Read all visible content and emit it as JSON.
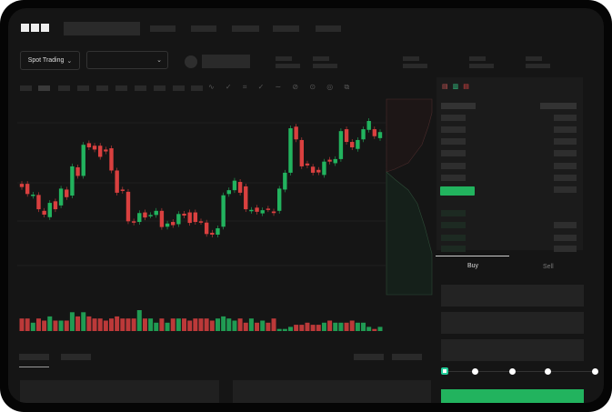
{
  "brand": {
    "logo": "OKX"
  },
  "market_selector": {
    "label": "Spot Trading",
    "icon": "chevron-down-icon"
  },
  "pair_selector": {
    "value": "",
    "icon": "chevron-down-icon"
  },
  "trade_form": {
    "tabs": [
      {
        "label": "Buy",
        "active": true
      },
      {
        "label": "Sell",
        "active": false
      }
    ],
    "slider_percent": 0
  },
  "colors": {
    "up": "#22b35e",
    "down": "#d9403f",
    "background": "#151515"
  },
  "chart_data": {
    "type": "candlestick",
    "candles": [
      {
        "o": 200,
        "c": 190
      },
      {
        "o": 200,
        "c": 168
      },
      {
        "o": 162,
        "c": 166
      },
      {
        "o": 165,
        "c": 120
      },
      {
        "o": 115,
        "c": 103
      },
      {
        "o": 95,
        "c": 140
      },
      {
        "o": 145,
        "c": 120
      },
      {
        "o": 132,
        "c": 185
      },
      {
        "o": 182,
        "c": 158
      },
      {
        "o": 163,
        "c": 255
      },
      {
        "o": 252,
        "c": 225
      },
      {
        "o": 225,
        "c": 323
      },
      {
        "o": 328,
        "c": 315
      },
      {
        "o": 320,
        "c": 308
      },
      {
        "o": 320,
        "c": 285
      },
      {
        "o": 308,
        "c": 302
      },
      {
        "o": 312,
        "c": 242
      },
      {
        "o": 242,
        "c": 172
      },
      {
        "o": 182,
        "c": 178
      },
      {
        "o": 175,
        "c": 82
      },
      {
        "o": 82,
        "c": 78
      },
      {
        "o": 80,
        "c": 108
      },
      {
        "o": 110,
        "c": 94
      },
      {
        "o": 100,
        "c": 102
      },
      {
        "o": 102,
        "c": 115
      },
      {
        "o": 115,
        "c": 64
      },
      {
        "o": 65,
        "c": 75
      },
      {
        "o": 80,
        "c": 70
      },
      {
        "o": 73,
        "c": 105
      },
      {
        "o": 106,
        "c": 100
      },
      {
        "o": 110,
        "c": 77
      },
      {
        "o": 110,
        "c": 80
      },
      {
        "o": 82,
        "c": 80
      },
      {
        "o": 78,
        "c": 42
      },
      {
        "o": 46,
        "c": 40
      },
      {
        "o": 40,
        "c": 60
      },
      {
        "o": 65,
        "c": 164
      },
      {
        "o": 168,
        "c": 180
      },
      {
        "o": 180,
        "c": 210
      },
      {
        "o": 206,
        "c": 172
      },
      {
        "o": 192,
        "c": 120
      },
      {
        "o": 115,
        "c": 118
      },
      {
        "o": 125,
        "c": 112
      },
      {
        "o": 107,
        "c": 117
      },
      {
        "o": 122,
        "c": 120
      },
      {
        "o": 113,
        "c": 108
      },
      {
        "o": 115,
        "c": 185
      },
      {
        "o": 182,
        "c": 235
      },
      {
        "o": 235,
        "c": 375
      },
      {
        "o": 380,
        "c": 340
      },
      {
        "o": 338,
        "c": 255
      },
      {
        "o": 264,
        "c": 258
      },
      {
        "o": 254,
        "c": 235
      },
      {
        "o": 244,
        "c": 236
      },
      {
        "o": 228,
        "c": 270
      },
      {
        "o": 276,
        "c": 270
      },
      {
        "o": 265,
        "c": 278
      },
      {
        "o": 278,
        "c": 366
      },
      {
        "o": 372,
        "c": 332
      },
      {
        "o": 332,
        "c": 315
      },
      {
        "o": 310,
        "c": 338
      },
      {
        "o": 340,
        "c": 372
      },
      {
        "o": 370,
        "c": 398
      },
      {
        "o": 372,
        "c": 350
      },
      {
        "o": 344,
        "c": 363
      }
    ],
    "volumes": [
      6,
      6,
      4,
      6,
      5,
      7,
      5,
      5,
      5,
      9,
      7,
      9,
      7,
      6,
      6,
      5,
      6,
      7,
      6,
      6,
      6,
      10,
      6,
      6,
      4,
      6,
      4,
      6,
      6,
      6,
      5,
      6,
      6,
      6,
      5,
      6,
      7,
      6,
      5,
      6,
      4,
      6,
      4,
      5,
      4,
      6,
      1,
      1,
      2,
      3,
      3,
      4,
      3,
      3,
      4,
      5,
      4,
      4,
      4,
      5,
      4,
      4,
      2,
      1,
      2
    ]
  }
}
